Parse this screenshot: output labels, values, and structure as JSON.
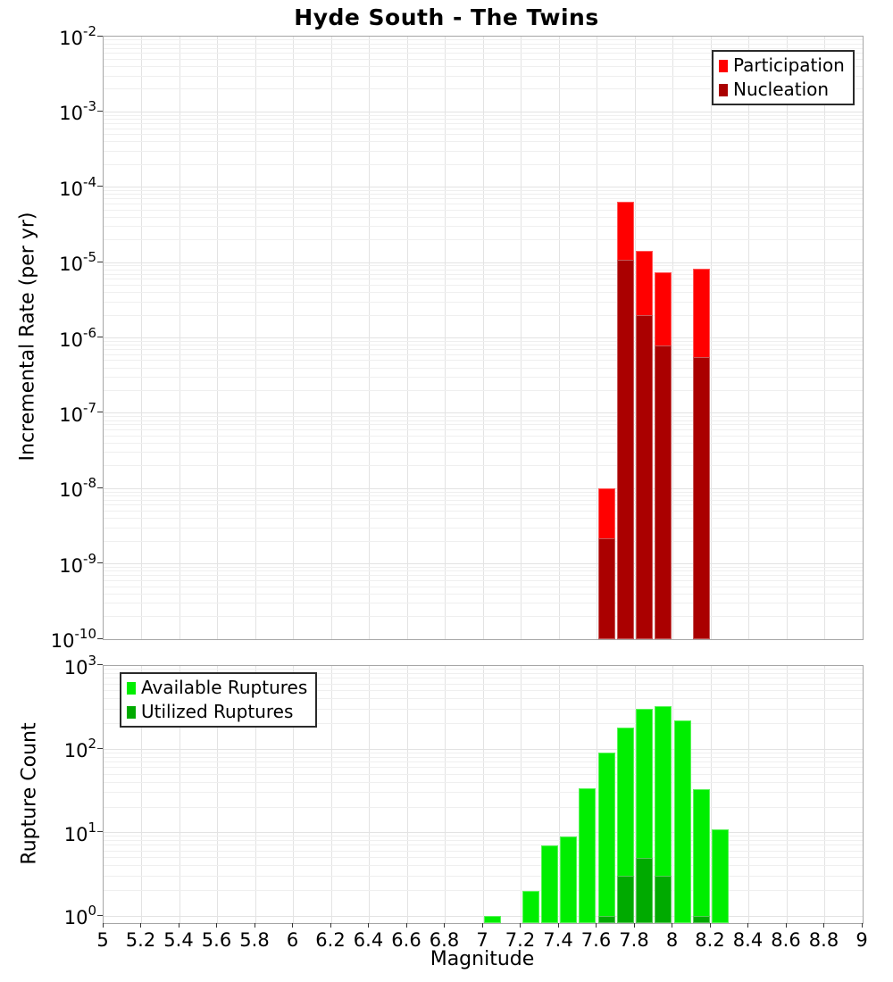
{
  "title": "Hyde South - The Twins",
  "chart_data": [
    {
      "type": "bar",
      "title": "Hyde South - The Twins",
      "xlabel": "",
      "ylabel": "Incremental Rate (per yr)",
      "xlim": [
        5,
        9
      ],
      "x_tick_step": 0.2,
      "bin_width": 0.1,
      "yscale": "log",
      "ylim": [
        1e-10,
        0.01
      ],
      "grid": true,
      "legend_position": "top-right",
      "series": [
        {
          "name": "Participation",
          "color": "#FF0000",
          "data": [
            [
              7.6,
              1e-08
            ],
            [
              7.7,
              6.5e-05
            ],
            [
              7.8,
              1.45e-05
            ],
            [
              7.9,
              7.5e-06
            ],
            [
              8.1,
              8.3e-06
            ]
          ]
        },
        {
          "name": "Nucleation",
          "color": "#AA0000",
          "data": [
            [
              7.6,
              2.2e-09
            ],
            [
              7.7,
              1.1e-05
            ],
            [
              7.8,
              2e-06
            ],
            [
              7.9,
              8e-07
            ],
            [
              8.1,
              5.6e-07
            ]
          ]
        }
      ]
    },
    {
      "type": "bar",
      "title": "",
      "xlabel": "Magnitude",
      "ylabel": "Rupture Count",
      "xlim": [
        5,
        9
      ],
      "x_tick_step": 0.2,
      "bin_width": 0.1,
      "yscale": "log",
      "ylim": [
        1,
        1000
      ],
      "grid": true,
      "legend_position": "top-left",
      "series": [
        {
          "name": "Available Ruptures",
          "color": "#00EE00",
          "data": [
            [
              7.0,
              1
            ],
            [
              7.2,
              2
            ],
            [
              7.3,
              7
            ],
            [
              7.4,
              9
            ],
            [
              7.5,
              34
            ],
            [
              7.6,
              90
            ],
            [
              7.7,
              180
            ],
            [
              7.8,
              300
            ],
            [
              7.9,
              330
            ],
            [
              8.0,
              220
            ],
            [
              8.1,
              33
            ],
            [
              8.2,
              11
            ]
          ]
        },
        {
          "name": "Utilized Ruptures",
          "color": "#00AA00",
          "data": [
            [
              7.6,
              1
            ],
            [
              7.7,
              3
            ],
            [
              7.8,
              5
            ],
            [
              7.9,
              3
            ],
            [
              8.1,
              1
            ]
          ]
        }
      ]
    }
  ]
}
